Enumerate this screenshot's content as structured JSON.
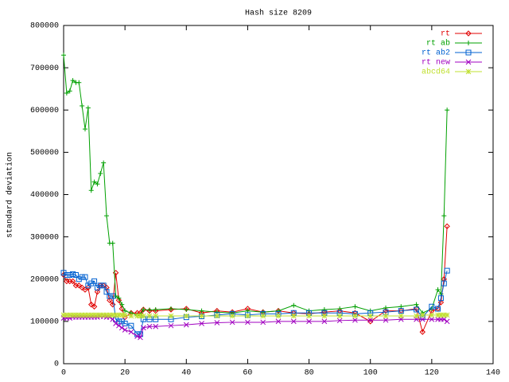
{
  "chart_data": {
    "type": "line",
    "title": "Hash size 8209",
    "ylabel": "standard deviation",
    "x": [
      0,
      1,
      2,
      3,
      4,
      5,
      6,
      7,
      8,
      9,
      10,
      11,
      12,
      13,
      14,
      15,
      16,
      17,
      18,
      19,
      20,
      22,
      24,
      25,
      26,
      28,
      30,
      35,
      40,
      45,
      50,
      55,
      60,
      65,
      70,
      75,
      80,
      85,
      90,
      95,
      100,
      105,
      110,
      115,
      117,
      120,
      122,
      123,
      124,
      125
    ],
    "series": [
      {
        "name": "rt",
        "color": "#e00000",
        "marker": "diamond",
        "values": [
          210000,
          195000,
          195000,
          195000,
          185000,
          185000,
          180000,
          175000,
          180000,
          140000,
          135000,
          170000,
          185000,
          185000,
          180000,
          150000,
          140000,
          215000,
          150000,
          130000,
          110000,
          120000,
          120000,
          120000,
          128000,
          125000,
          125000,
          128000,
          130000,
          120000,
          125000,
          122000,
          130000,
          122000,
          125000,
          120000,
          118000,
          122000,
          125000,
          120000,
          100000,
          125000,
          125000,
          130000,
          75000,
          125000,
          130000,
          145000,
          200000,
          325000
        ]
      },
      {
        "name": "rt ab",
        "color": "#00a000",
        "marker": "plus",
        "values": [
          730000,
          640000,
          645000,
          670000,
          665000,
          665000,
          610000,
          555000,
          605000,
          410000,
          430000,
          425000,
          450000,
          475000,
          350000,
          285000,
          285000,
          160000,
          155000,
          140000,
          125000,
          120000,
          115000,
          115000,
          128000,
          127000,
          128000,
          130000,
          128000,
          125000,
          122000,
          120000,
          125000,
          122000,
          125000,
          138000,
          125000,
          128000,
          130000,
          135000,
          125000,
          132000,
          135000,
          140000,
          120000,
          130000,
          175000,
          165000,
          350000,
          600000
        ]
      },
      {
        "name": "rt ab2",
        "color": "#0060d0",
        "marker": "square",
        "values": [
          215000,
          210000,
          210000,
          212000,
          210000,
          200000,
          205000,
          205000,
          185000,
          190000,
          195000,
          180000,
          185000,
          185000,
          170000,
          160000,
          160000,
          105000,
          100000,
          100000,
          95000,
          90000,
          70000,
          70000,
          105000,
          105000,
          105000,
          105000,
          110000,
          112000,
          115000,
          118000,
          115000,
          118000,
          118000,
          120000,
          120000,
          120000,
          120000,
          118000,
          120000,
          122000,
          125000,
          128000,
          110000,
          135000,
          130000,
          155000,
          190000,
          220000
        ]
      },
      {
        "name": "rt new",
        "color": "#a000c0",
        "marker": "cross",
        "values": [
          108000,
          108000,
          108000,
          110000,
          110000,
          110000,
          110000,
          110000,
          110000,
          110000,
          110000,
          110000,
          112000,
          112000,
          110000,
          110000,
          105000,
          95000,
          90000,
          85000,
          80000,
          75000,
          65000,
          62000,
          85000,
          88000,
          88000,
          90000,
          92000,
          95000,
          97000,
          98000,
          98000,
          98000,
          100000,
          100000,
          100000,
          100000,
          102000,
          103000,
          103000,
          103000,
          105000,
          105000,
          105000,
          105000,
          105000,
          105000,
          105000,
          100000
        ]
      },
      {
        "name": "abcd64",
        "color": "#c0e030",
        "marker": "star",
        "values": [
          115000,
          115000,
          115000,
          115000,
          115000,
          115000,
          115000,
          115000,
          115000,
          115000,
          115000,
          115000,
          115000,
          115000,
          115000,
          115000,
          115000,
          115000,
          115000,
          115000,
          115000,
          113000,
          113000,
          113000,
          113000,
          113000,
          113000,
          113000,
          113000,
          113000,
          113000,
          113000,
          113000,
          113000,
          113000,
          113000,
          113000,
          113000,
          113000,
          113000,
          113000,
          113000,
          113000,
          113000,
          115000,
          115000,
          115000,
          115000,
          115000,
          115000
        ]
      }
    ],
    "xlim": [
      0,
      140
    ],
    "xticks": [
      0,
      20,
      40,
      60,
      80,
      100,
      120,
      140
    ],
    "ylim": [
      0,
      800000
    ],
    "yticks": [
      0,
      100000,
      200000,
      300000,
      400000,
      500000,
      600000,
      700000,
      800000
    ],
    "legend": "top-right"
  }
}
